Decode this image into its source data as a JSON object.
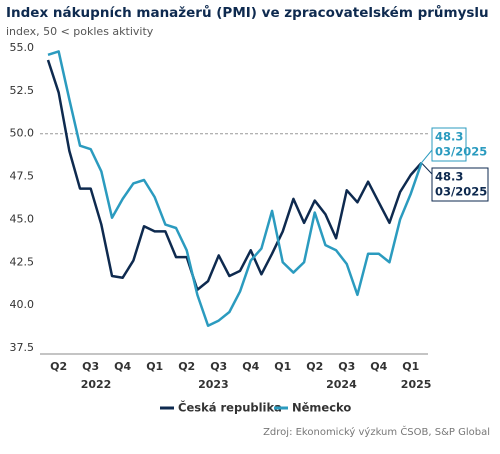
{
  "chart_data": {
    "type": "line",
    "title": "Index nákupních manažerů (PMI) ve zpracovatelském průmyslu",
    "subtitle": "index, 50 < pokles aktivity",
    "categories": [
      null,
      "Q2",
      null,
      null,
      "Q3",
      null,
      null,
      "Q4",
      null,
      null,
      "Q1",
      null,
      null,
      "Q2",
      null,
      null,
      "Q3",
      null,
      null,
      "Q4",
      null,
      null,
      "Q1",
      null,
      null,
      "Q2",
      null,
      null,
      "Q3",
      null,
      null,
      "Q4",
      null,
      null,
      "Q1",
      null
    ],
    "years": [
      "2022",
      "2023",
      "2024",
      "2025"
    ],
    "series": [
      {
        "name": "Česká republika",
        "color": "#0e2a4f",
        "values": [
          54.3,
          52.4,
          49.0,
          46.8,
          46.8,
          44.7,
          41.7,
          41.6,
          42.6,
          44.6,
          44.3,
          44.3,
          42.8,
          42.8,
          40.9,
          41.4,
          42.9,
          41.7,
          42.0,
          43.2,
          41.8,
          43.0,
          44.3,
          46.2,
          44.8,
          46.1,
          45.3,
          43.9,
          46.7,
          46.0,
          47.2,
          46.0,
          44.8,
          46.6,
          47.6,
          48.3
        ],
        "value_labels": [
          null,
          null,
          null,
          null,
          null,
          null,
          null,
          null,
          null,
          null,
          null,
          null,
          null,
          null,
          null,
          null,
          null,
          null,
          null,
          null,
          null,
          null,
          null,
          null,
          null,
          null,
          null,
          null,
          null,
          null,
          null,
          null,
          null,
          null,
          null,
          "48.3"
        ],
        "last_date": "03/2025"
      },
      {
        "name": "Německo",
        "color": "#2b9bbf",
        "values": [
          54.6,
          54.8,
          52.0,
          49.3,
          49.1,
          47.8,
          45.1,
          46.2,
          47.1,
          47.3,
          46.3,
          44.7,
          44.5,
          43.2,
          40.6,
          38.8,
          39.1,
          39.6,
          40.8,
          42.6,
          43.3,
          45.5,
          42.5,
          41.9,
          42.5,
          45.4,
          43.5,
          43.2,
          42.4,
          40.6,
          43.0,
          43.0,
          42.5,
          45.0,
          46.5,
          48.3
        ],
        "value_labels": [
          null,
          null,
          null,
          null,
          null,
          null,
          null,
          null,
          null,
          null,
          null,
          null,
          null,
          null,
          null,
          null,
          null,
          null,
          null,
          null,
          null,
          null,
          null,
          null,
          null,
          null,
          null,
          null,
          null,
          null,
          null,
          null,
          null,
          null,
          null,
          "48.3"
        ],
        "last_date": "03/2025"
      }
    ],
    "ylim": [
      37.5,
      55.0
    ],
    "yticks": [
      {
        "value": 37.5,
        "label": "37.5"
      },
      {
        "value": 40,
        "label": "40.0"
      },
      {
        "value": 42.5,
        "label": "42.5"
      },
      {
        "value": 45,
        "label": "45.0"
      },
      {
        "value": 47.5,
        "label": "47.5"
      },
      {
        "value": 50,
        "label": "50.0"
      },
      {
        "value": 52.5,
        "label": "52.5"
      },
      {
        "value": 55,
        "label": "55.0"
      }
    ],
    "reference_line": 50,
    "source": "Zdroj: Ekonomický výzkum ČSOB, S&P Global"
  }
}
